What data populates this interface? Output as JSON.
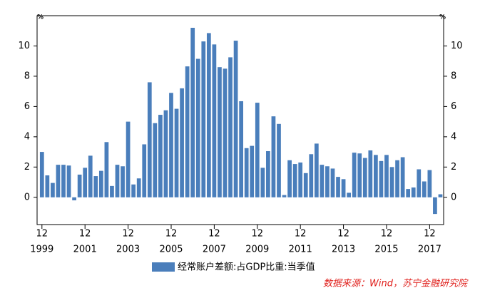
{
  "chart_data": {
    "type": "bar",
    "unit_left": "%",
    "unit_right": "%",
    "categories": [
      "12",
      null,
      null,
      null,
      null,
      null,
      null,
      null,
      "12",
      null,
      null,
      null,
      null,
      null,
      null,
      null,
      "12",
      null,
      null,
      null,
      null,
      null,
      null,
      null,
      "12",
      null,
      null,
      null,
      null,
      null,
      null,
      null,
      "12",
      null,
      null,
      null,
      null,
      null,
      null,
      null,
      "12",
      null,
      null,
      null,
      null,
      null,
      null,
      null,
      "12",
      null,
      null,
      null,
      null,
      null,
      null,
      null,
      "12",
      null,
      null,
      null,
      null,
      null,
      null,
      null,
      "12",
      null,
      null,
      null,
      null,
      null,
      null,
      null,
      "12",
      null,
      null
    ],
    "category_years": [
      "1999",
      null,
      null,
      null,
      null,
      null,
      null,
      null,
      "2001",
      null,
      null,
      null,
      null,
      null,
      null,
      null,
      "2003",
      null,
      null,
      null,
      null,
      null,
      null,
      null,
      "2005",
      null,
      null,
      null,
      null,
      null,
      null,
      null,
      "2007",
      null,
      null,
      null,
      null,
      null,
      null,
      null,
      "2009",
      null,
      null,
      null,
      null,
      null,
      null,
      null,
      "2011",
      null,
      null,
      null,
      null,
      null,
      null,
      null,
      "2013",
      null,
      null,
      null,
      null,
      null,
      null,
      null,
      "2015",
      null,
      null,
      null,
      null,
      null,
      null,
      null,
      "2017",
      null,
      null
    ],
    "series": [
      {
        "name": "经常账户差额:占GDP比重:当季值",
        "color": "#4a7ebb",
        "values": [
          3.0,
          1.45,
          0.95,
          2.15,
          2.15,
          2.1,
          -0.2,
          1.5,
          1.95,
          2.75,
          1.4,
          1.75,
          3.65,
          0.75,
          2.15,
          2.05,
          5.0,
          0.85,
          1.25,
          3.5,
          7.6,
          4.9,
          5.45,
          5.75,
          6.9,
          5.85,
          7.2,
          8.65,
          11.2,
          9.15,
          10.3,
          10.85,
          10.1,
          8.6,
          8.5,
          9.25,
          10.35,
          6.35,
          3.25,
          3.4,
          6.25,
          1.95,
          3.05,
          5.35,
          4.85,
          0.15,
          2.45,
          2.2,
          2.3,
          1.6,
          2.85,
          3.55,
          2.15,
          2.05,
          1.9,
          1.35,
          1.2,
          0.3,
          2.95,
          2.9,
          2.6,
          3.1,
          2.8,
          2.4,
          2.8,
          2.0,
          2.45,
          2.65,
          0.55,
          0.65,
          1.85,
          1.05,
          1.8,
          -1.1,
          0.2
        ]
      }
    ],
    "ylim": [
      -1.8,
      12
    ],
    "yticks": [
      0,
      2,
      4,
      6,
      8,
      10
    ],
    "y2lim": [
      -1.8,
      12
    ],
    "y2ticks": [
      0,
      2,
      4,
      6,
      8,
      10
    ],
    "source": "数据来源：Wind，苏宁金融研究院"
  }
}
